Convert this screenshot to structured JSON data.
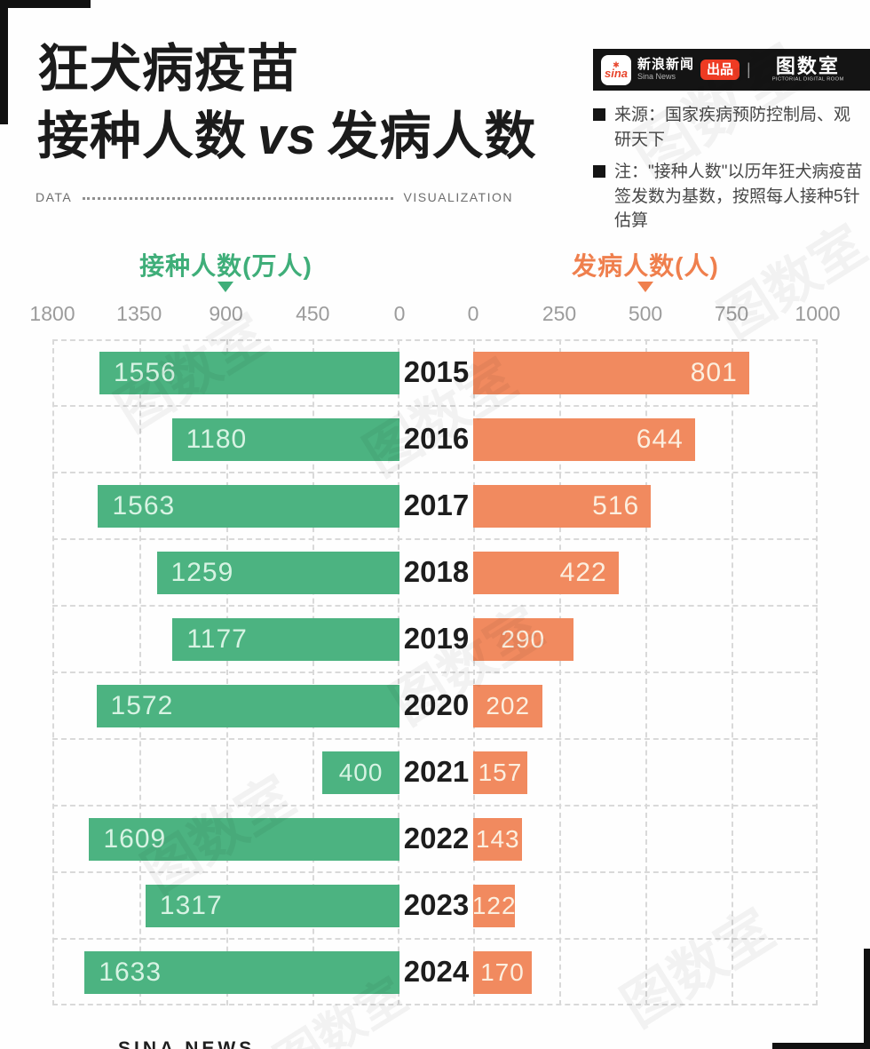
{
  "header": {
    "logo_text": "sina",
    "logo_eye": "✱",
    "brand_cn": "新浪新闻",
    "brand_en": "Sina News",
    "badge": "出品",
    "divider": "|",
    "studio": "图数室",
    "studio_sub": "PICTORIAL DIGITAL ROOM"
  },
  "notes": [
    "来源：国家疾病预防控制局、观研天下",
    "注：\"接种人数\"以历年狂犬病疫苗签发数为基数，按照每人接种5针估算"
  ],
  "title": {
    "line1": "狂犬病疫苗",
    "line2_a": "接种人数",
    "line2_vs": "vs",
    "line2_b": "发病人数"
  },
  "ribbon": {
    "left": "DATA",
    "right": "VISUALIZATION"
  },
  "chart_data": {
    "type": "bar",
    "variant": "diverging-horizontal",
    "grid": "dashed",
    "legend_position": "top",
    "categories": [
      "2015",
      "2016",
      "2017",
      "2018",
      "2019",
      "2020",
      "2021",
      "2022",
      "2023",
      "2024"
    ],
    "series": [
      {
        "name": "接种人数(万人)",
        "color": "#4cb381",
        "axis_min": 0,
        "axis_max": 1800,
        "direction": "right-to-left",
        "ticks": [
          "1800",
          "1350",
          "900",
          "450",
          "0"
        ],
        "values": [
          1556,
          1180,
          1563,
          1259,
          1177,
          1572,
          400,
          1609,
          1317,
          1633
        ]
      },
      {
        "name": "发病人数(人)",
        "color": "#f18a5f",
        "axis_min": 0,
        "axis_max": 1000,
        "direction": "left-to-right",
        "ticks": [
          "0",
          "250",
          "500",
          "750",
          "1000"
        ],
        "values": [
          801,
          644,
          516,
          422,
          290,
          202,
          157,
          143,
          122,
          170
        ]
      }
    ]
  },
  "watermark": "图数室",
  "footer": {
    "clipped": "SINA NEWS"
  },
  "colors": {
    "green": "#4cb381",
    "orange": "#f18a5f",
    "green_label": "#d7f3e3",
    "orange_label": "#fcefdf",
    "legend_green": "#3fae79",
    "legend_orange": "#ef7f4d",
    "year_text": "#1d1d1d",
    "tick_text": "#9c9c9c",
    "grid": "#d9d9d9",
    "header_bg": "#141414",
    "badge_red": "#ee3b23"
  }
}
